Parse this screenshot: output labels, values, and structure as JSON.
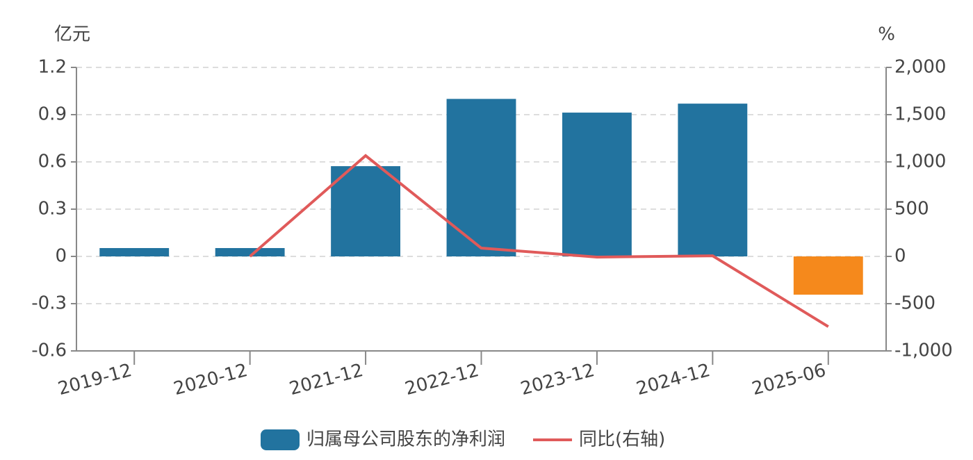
{
  "chart_data": {
    "type": "bar-line",
    "y_unit": "亿元",
    "y2_unit": "%",
    "categories": [
      "2019-12",
      "2020-12",
      "2021-12",
      "2022-12",
      "2023-12",
      "2024-12",
      "2025-06"
    ],
    "series": [
      {
        "name": "归属母公司股东的净利润",
        "type": "bar",
        "color": "#22739f",
        "negative_color": "#f5891c",
        "values": [
          0.053,
          0.053,
          0.573,
          1.0,
          0.913,
          0.97,
          -0.243
        ]
      },
      {
        "name": "同比(右轴)",
        "type": "line",
        "axis": "y2",
        "color": "#e05a5a",
        "values": [
          null,
          0,
          1066,
          88,
          -7,
          6,
          -743
        ]
      }
    ],
    "ylim": [
      -0.6,
      1.2
    ],
    "yticks": [
      -0.6,
      -0.3,
      0,
      0.3,
      0.6,
      0.9,
      1.2
    ],
    "y2lim": [
      -1000,
      2000
    ],
    "y2ticks": [
      {
        "value": -1000,
        "label": "-1,000"
      },
      -500,
      0,
      500,
      {
        "value": 1000,
        "label": "1,000"
      },
      {
        "value": 1500,
        "label": "1,500"
      },
      {
        "value": 2000,
        "label": "2,000"
      }
    ],
    "grid": true
  }
}
